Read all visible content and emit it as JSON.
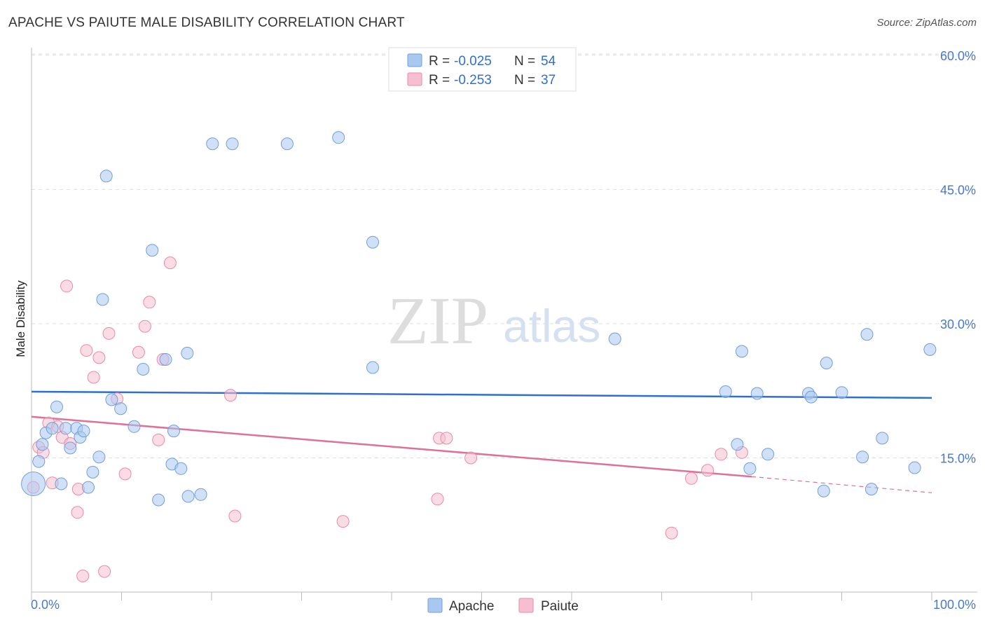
{
  "title": "APACHE VS PAIUTE MALE DISABILITY CORRELATION CHART",
  "source": "Source: ZipAtlas.com",
  "watermark": {
    "part1": "ZIP",
    "part2": "atlas"
  },
  "colors": {
    "apache_fill": "#a9c8f0",
    "apache_stroke": "#6f9fdc",
    "apache_line": "#2f6fcf",
    "paiute_fill": "#f6bfd0",
    "paiute_stroke": "#e98aaa",
    "paiute_line": "#e0709a",
    "tick_text": "#4a78c8",
    "grid": "#dddddd"
  },
  "legend_top": {
    "rows": [
      {
        "r_label": "R =",
        "r_value": "-0.025",
        "n_label": "N =",
        "n_value": "54"
      },
      {
        "r_label": "R =",
        "r_value": "-0.253",
        "n_label": "N =",
        "n_value": "37"
      }
    ]
  },
  "legend_bottom": {
    "apache": "Apache",
    "paiute": "Paiute"
  },
  "chart_data": {
    "type": "scatter",
    "title": "APACHE VS PAIUTE MALE DISABILITY CORRELATION CHART",
    "xlabel": "",
    "ylabel": "Male Disability",
    "xlim": [
      0,
      100
    ],
    "ylim": [
      0,
      62
    ],
    "x_tick_labels": [
      "0.0%",
      "100.0%"
    ],
    "y_ticks": [
      15,
      30,
      45,
      60
    ],
    "y_tick_labels": [
      "15.0%",
      "30.0%",
      "45.0%",
      "60.0%"
    ],
    "grid": true,
    "legend_position": "top-center",
    "series": [
      {
        "name": "Apache",
        "r": -0.025,
        "n": 54,
        "trend": {
          "x": [
            0,
            100
          ],
          "y": [
            22.4,
            21.7
          ]
        },
        "points": [
          {
            "x": 0.2,
            "y": 12.1,
            "big": true
          },
          {
            "x": 0.8,
            "y": 14.6
          },
          {
            "x": 1.2,
            "y": 16.5
          },
          {
            "x": 1.6,
            "y": 17.8
          },
          {
            "x": 2.3,
            "y": 18.3
          },
          {
            "x": 2.8,
            "y": 20.7
          },
          {
            "x": 3.3,
            "y": 12.1
          },
          {
            "x": 3.8,
            "y": 18.3
          },
          {
            "x": 4.3,
            "y": 16.1
          },
          {
            "x": 5.0,
            "y": 18.3
          },
          {
            "x": 5.4,
            "y": 17.3
          },
          {
            "x": 5.8,
            "y": 18.0
          },
          {
            "x": 6.3,
            "y": 11.7
          },
          {
            "x": 6.8,
            "y": 13.4
          },
          {
            "x": 7.5,
            "y": 15.1
          },
          {
            "x": 7.9,
            "y": 32.7
          },
          {
            "x": 8.3,
            "y": 46.5
          },
          {
            "x": 8.9,
            "y": 21.5
          },
          {
            "x": 9.9,
            "y": 20.5
          },
          {
            "x": 11.4,
            "y": 18.5
          },
          {
            "x": 12.4,
            "y": 24.9
          },
          {
            "x": 13.4,
            "y": 38.2
          },
          {
            "x": 14.1,
            "y": 10.3
          },
          {
            "x": 14.9,
            "y": 26.0
          },
          {
            "x": 15.6,
            "y": 14.3
          },
          {
            "x": 15.8,
            "y": 18.0
          },
          {
            "x": 16.6,
            "y": 13.8
          },
          {
            "x": 17.3,
            "y": 26.7
          },
          {
            "x": 17.4,
            "y": 10.7
          },
          {
            "x": 18.8,
            "y": 10.9
          },
          {
            "x": 20.1,
            "y": 50.1
          },
          {
            "x": 22.3,
            "y": 50.1
          },
          {
            "x": 28.4,
            "y": 50.1
          },
          {
            "x": 34.1,
            "y": 50.8
          },
          {
            "x": 37.9,
            "y": 39.1
          },
          {
            "x": 37.9,
            "y": 25.1
          },
          {
            "x": 64.8,
            "y": 28.3
          },
          {
            "x": 77.1,
            "y": 22.4
          },
          {
            "x": 78.4,
            "y": 16.5
          },
          {
            "x": 78.9,
            "y": 26.9
          },
          {
            "x": 79.8,
            "y": 13.8
          },
          {
            "x": 80.6,
            "y": 22.2
          },
          {
            "x": 81.8,
            "y": 15.4
          },
          {
            "x": 86.3,
            "y": 22.2
          },
          {
            "x": 86.6,
            "y": 21.8
          },
          {
            "x": 88.0,
            "y": 11.3
          },
          {
            "x": 88.3,
            "y": 25.6
          },
          {
            "x": 90.0,
            "y": 22.3
          },
          {
            "x": 92.3,
            "y": 15.1
          },
          {
            "x": 92.8,
            "y": 28.8
          },
          {
            "x": 93.3,
            "y": 11.5
          },
          {
            "x": 94.5,
            "y": 17.2
          },
          {
            "x": 98.1,
            "y": 13.9
          },
          {
            "x": 99.8,
            "y": 27.1
          }
        ]
      },
      {
        "name": "Paiute",
        "r": -0.253,
        "n": 37,
        "trend": {
          "x": [
            0,
            80
          ],
          "y": [
            19.6,
            12.9
          ],
          "dashed_to": {
            "x": 100,
            "y": 11.1
          }
        },
        "points": [
          {
            "x": 0.2,
            "y": 11.7
          },
          {
            "x": 0.8,
            "y": 16.2
          },
          {
            "x": 1.3,
            "y": 15.6
          },
          {
            "x": 1.9,
            "y": 18.9
          },
          {
            "x": 2.3,
            "y": 12.2
          },
          {
            "x": 2.9,
            "y": 18.5
          },
          {
            "x": 3.4,
            "y": 17.3
          },
          {
            "x": 3.9,
            "y": 34.2
          },
          {
            "x": 4.3,
            "y": 16.6
          },
          {
            "x": 5.1,
            "y": 8.9
          },
          {
            "x": 5.2,
            "y": 11.5
          },
          {
            "x": 5.7,
            "y": 1.8
          },
          {
            "x": 6.1,
            "y": 27.0
          },
          {
            "x": 6.9,
            "y": 24.0
          },
          {
            "x": 7.5,
            "y": 26.2
          },
          {
            "x": 8.1,
            "y": 2.3
          },
          {
            "x": 8.6,
            "y": 28.9
          },
          {
            "x": 9.5,
            "y": 21.6
          },
          {
            "x": 10.4,
            "y": 13.2
          },
          {
            "x": 11.9,
            "y": 26.8
          },
          {
            "x": 12.6,
            "y": 29.7
          },
          {
            "x": 13.1,
            "y": 32.4
          },
          {
            "x": 14.1,
            "y": 17.0
          },
          {
            "x": 14.6,
            "y": 26.0
          },
          {
            "x": 15.4,
            "y": 36.8
          },
          {
            "x": 22.1,
            "y": 22.0
          },
          {
            "x": 22.6,
            "y": 8.5
          },
          {
            "x": 34.6,
            "y": 7.9
          },
          {
            "x": 45.1,
            "y": 10.4
          },
          {
            "x": 45.3,
            "y": 17.2
          },
          {
            "x": 46.1,
            "y": 17.2
          },
          {
            "x": 48.8,
            "y": 15.0
          },
          {
            "x": 71.1,
            "y": 6.6
          },
          {
            "x": 73.3,
            "y": 12.7
          },
          {
            "x": 75.1,
            "y": 13.6
          },
          {
            "x": 76.6,
            "y": 15.4
          },
          {
            "x": 78.9,
            "y": 15.6
          }
        ]
      }
    ]
  }
}
